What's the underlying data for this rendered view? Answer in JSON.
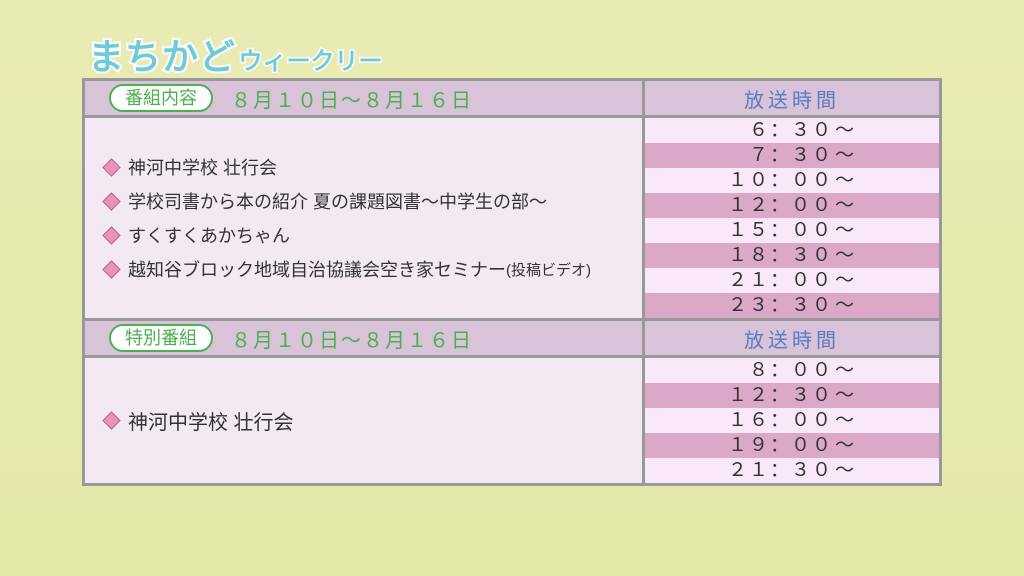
{
  "title": {
    "main": "まちかど",
    "sub": "ウィークリー"
  },
  "colors": {
    "background": "#e8ebb4",
    "border": "#999999",
    "header_bg": "#d8c3d8",
    "content_bg": "#f2e9f2",
    "stripe_light": "#f9e8f9",
    "stripe_dark": "#dca8c8",
    "pill_border": "#4caf50",
    "pill_text": "#4caf50",
    "date_text": "#4caf50",
    "time_header_text": "#5a7bc4",
    "bullet": "#e893b8",
    "title_text": "#6fcbd8",
    "title_stroke": "#ffffff",
    "body_text": "#333333"
  },
  "sections": [
    {
      "pill_label": "番組内容",
      "date_range": "８月１０日～８月１６日",
      "time_header": "放送時間",
      "items": [
        {
          "text": "神河中学校 壮行会"
        },
        {
          "text": "学校司書から本の紹介 夏の課題図書～中学生の部～"
        },
        {
          "text": "すくすくあかちゃん"
        },
        {
          "text": "越知谷ブロック地域自治協議会空き家セミナー",
          "suffix": "(投稿ビデオ)"
        }
      ],
      "times": [
        {
          "t": "　６：３０",
          "stripe": "a"
        },
        {
          "t": "　７：３０",
          "stripe": "b"
        },
        {
          "t": "１０：００",
          "stripe": "a"
        },
        {
          "t": "１２：００",
          "stripe": "b"
        },
        {
          "t": "１５：００",
          "stripe": "a"
        },
        {
          "t": "１８：３０",
          "stripe": "b"
        },
        {
          "t": "２１：００",
          "stripe": "a"
        },
        {
          "t": "２３：３０",
          "stripe": "b"
        }
      ]
    },
    {
      "pill_label": "特別番組",
      "date_range": "８月１０日～８月１６日",
      "time_header": "放送時間",
      "items": [
        {
          "text": "神河中学校 壮行会"
        }
      ],
      "times": [
        {
          "t": "　８：００",
          "stripe": "a"
        },
        {
          "t": "１２：３０",
          "stripe": "b"
        },
        {
          "t": "１６：００",
          "stripe": "a"
        },
        {
          "t": "１９：００",
          "stripe": "b"
        },
        {
          "t": "２１：３０",
          "stripe": "a"
        }
      ]
    }
  ],
  "tilde": "～"
}
